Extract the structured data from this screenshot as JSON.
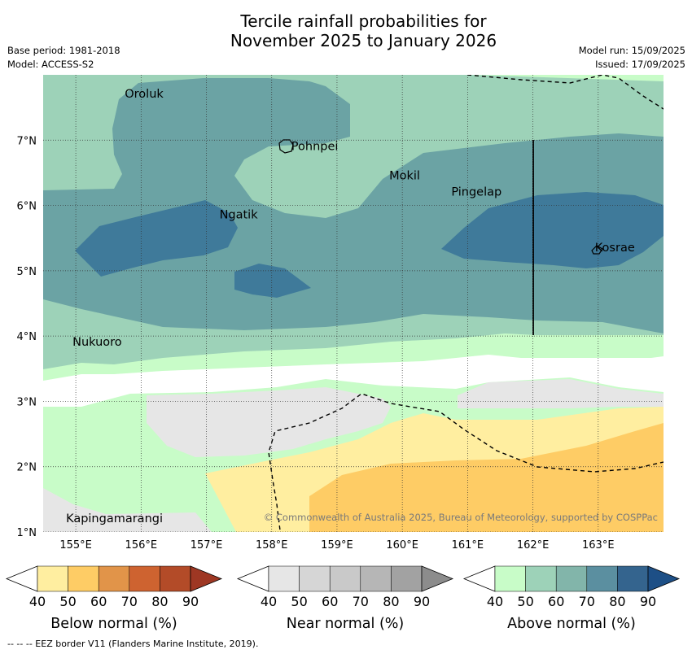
{
  "title_line1": "Tercile rainfall probabilities for",
  "title_line2": "November 2025 to January 2026",
  "base_period": "Base period: 1981-2018",
  "model": "Model: ACCESS-S2",
  "model_run": "Model run: 15/09/2025",
  "issued": "Issued: 17/09/2025",
  "map": {
    "lon_range": [
      154.5,
      164.0
    ],
    "lat_range": [
      1.0,
      8.0
    ],
    "lon_ticks": [
      155,
      156,
      157,
      158,
      159,
      160,
      161,
      162,
      163
    ],
    "lon_tick_labels": [
      "155°E",
      "156°E",
      "157°E",
      "158°E",
      "159°E",
      "160°E",
      "161°E",
      "162°E",
      "163°E"
    ],
    "lat_ticks": [
      1,
      2,
      3,
      4,
      5,
      6,
      7
    ],
    "lat_tick_labels": [
      "1°N",
      "2°N",
      "3°N",
      "4°N",
      "5°N",
      "6°N",
      "7°N"
    ],
    "grid": true,
    "places": [
      {
        "name": "Oroluk",
        "lon": 155.75,
        "lat": 7.65
      },
      {
        "name": "Pohnpei",
        "lon": 158.3,
        "lat": 6.85
      },
      {
        "name": "Mokil",
        "lon": 159.8,
        "lat": 6.4
      },
      {
        "name": "Pingelap",
        "lon": 160.75,
        "lat": 6.15
      },
      {
        "name": "Ngatik",
        "lon": 157.2,
        "lat": 5.8
      },
      {
        "name": "Kosrae",
        "lon": 162.95,
        "lat": 5.3
      },
      {
        "name": "Nukuoro",
        "lon": 154.95,
        "lat": 3.85
      },
      {
        "name": "Kapingamarangi",
        "lon": 154.85,
        "lat": 1.15
      }
    ],
    "copyright": "© Commonwealth of Australia 2025, Bureau of Meteorology, supported by COSPPac"
  },
  "legends": [
    {
      "label": "Below normal (%)",
      "ticks": [
        "40",
        "50",
        "60",
        "70",
        "80",
        "90"
      ],
      "colors": [
        "#ffeea0",
        "#fecc65",
        "#e19449",
        "#ce6330",
        "#b34b28",
        "#9e3723"
      ]
    },
    {
      "label": "Near normal (%)",
      "ticks": [
        "40",
        "50",
        "60",
        "70",
        "80",
        "90"
      ],
      "colors": [
        "#e6e6e6",
        "#d6d6d6",
        "#c9c9c9",
        "#b6b6b6",
        "#a2a2a2",
        "#8c8c8c"
      ]
    },
    {
      "label": "Above normal (%)",
      "ticks": [
        "40",
        "50",
        "60",
        "70",
        "80",
        "90"
      ],
      "colors": [
        "#c8fcc8",
        "#9dd2b8",
        "#82b5aa",
        "#5b8fa0",
        "#34648e",
        "#1d4f86"
      ]
    }
  ],
  "colors": {
    "above_50": "#9dd2b8",
    "above_60": "#6ba3a4",
    "above_70": "#3f7a9a",
    "above_40": "#c8fcc8",
    "near_40": "#e6e6e6",
    "below_40": "#ffeea0",
    "below_50": "#fecc65"
  },
  "footer": "-- -- -- EEZ border V11 (Flanders Marine Institute, 2019)."
}
